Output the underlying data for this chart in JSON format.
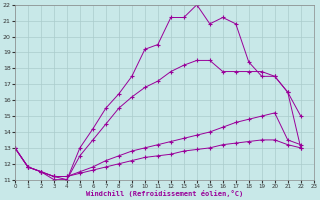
{
  "xlabel": "Windchill (Refroidissement éolien,°C)",
  "bg_color": "#c8e8e8",
  "line_color": "#990099",
  "grid_color": "#aacccc",
  "xlim": [
    0,
    23
  ],
  "ylim": [
    11,
    22
  ],
  "xticks": [
    0,
    1,
    2,
    3,
    4,
    5,
    6,
    7,
    8,
    9,
    10,
    11,
    12,
    13,
    14,
    15,
    16,
    17,
    18,
    19,
    20,
    21,
    22,
    23
  ],
  "yticks": [
    11,
    12,
    13,
    14,
    15,
    16,
    17,
    18,
    19,
    20,
    21,
    22
  ],
  "series1_x": [
    0,
    1,
    2,
    3,
    4,
    5,
    6,
    7,
    8,
    9,
    10,
    11,
    12,
    13,
    14,
    15,
    16,
    17,
    18,
    19,
    20,
    21,
    22
  ],
  "series1_y": [
    13.0,
    11.8,
    11.5,
    11.0,
    11.0,
    13.0,
    14.2,
    15.5,
    16.4,
    17.5,
    19.2,
    19.5,
    21.2,
    21.2,
    22.0,
    20.8,
    21.2,
    20.8,
    18.4,
    17.5,
    17.5,
    16.5,
    15.0
  ],
  "series2_x": [
    0,
    1,
    2,
    3,
    4,
    5,
    6,
    7,
    8,
    9,
    10,
    11,
    12,
    13,
    14,
    15,
    16,
    17,
    18,
    19,
    20,
    21,
    22
  ],
  "series2_y": [
    13.0,
    11.8,
    11.5,
    11.2,
    11.0,
    12.5,
    13.5,
    14.5,
    15.5,
    16.2,
    16.8,
    17.2,
    17.8,
    18.2,
    18.5,
    18.5,
    17.8,
    17.8,
    17.8,
    17.8,
    17.5,
    16.5,
    13.0
  ],
  "series3_x": [
    0,
    1,
    2,
    3,
    4,
    5,
    6,
    7,
    8,
    9,
    10,
    11,
    12,
    13,
    14,
    15,
    16,
    17,
    18,
    19,
    20,
    21,
    22
  ],
  "series3_y": [
    13.0,
    11.8,
    11.5,
    11.2,
    11.2,
    11.5,
    11.8,
    12.2,
    12.5,
    12.8,
    13.0,
    13.2,
    13.4,
    13.6,
    13.8,
    14.0,
    14.3,
    14.6,
    14.8,
    15.0,
    15.2,
    13.5,
    13.2
  ],
  "series4_x": [
    0,
    1,
    2,
    3,
    4,
    5,
    6,
    7,
    8,
    9,
    10,
    11,
    12,
    13,
    14,
    15,
    16,
    17,
    18,
    19,
    20,
    21,
    22
  ],
  "series4_y": [
    13.0,
    11.8,
    11.5,
    11.2,
    11.2,
    11.4,
    11.6,
    11.8,
    12.0,
    12.2,
    12.4,
    12.5,
    12.6,
    12.8,
    12.9,
    13.0,
    13.2,
    13.3,
    13.4,
    13.5,
    13.5,
    13.2,
    13.0
  ]
}
